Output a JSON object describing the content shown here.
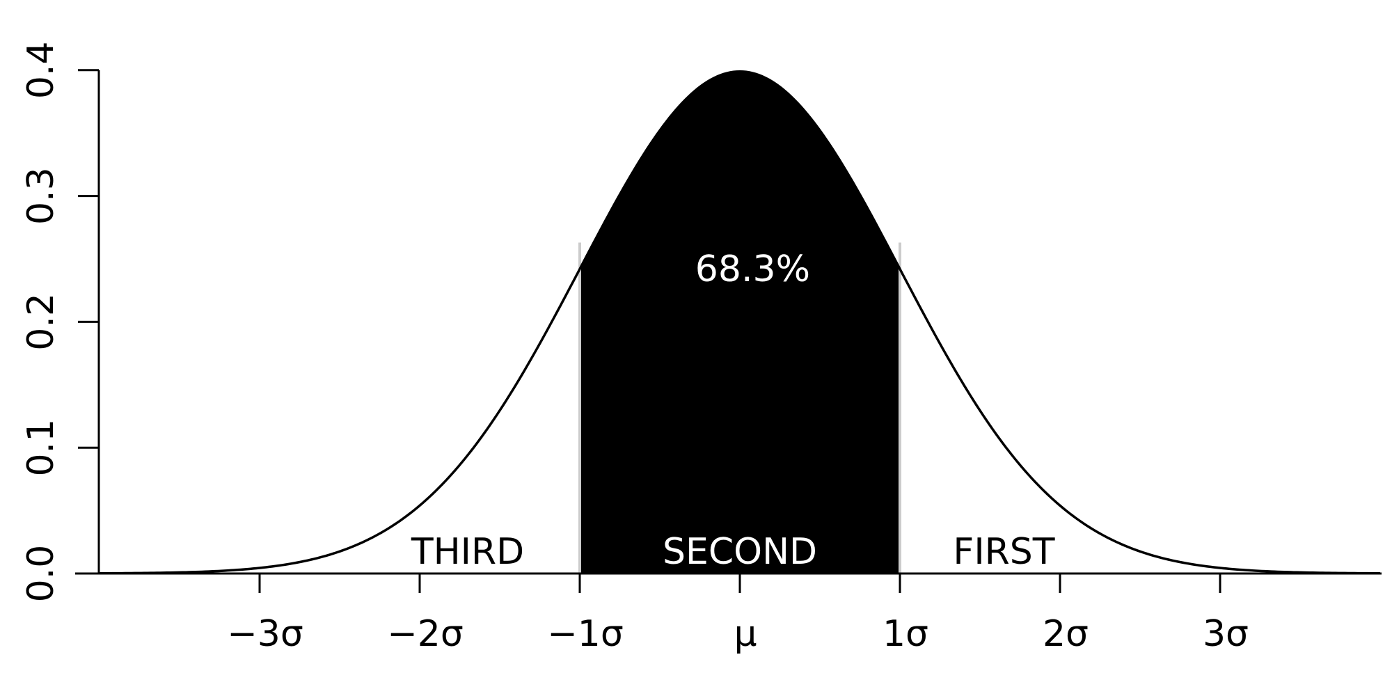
{
  "chart_data": {
    "type": "area",
    "title": "",
    "xlabel": "",
    "ylabel": "",
    "xlim": [
      -4.5,
      4.0
    ],
    "ylim": [
      0,
      0.4
    ],
    "grid": false,
    "x_ticks": [
      {
        "value": -3,
        "label": "−3σ"
      },
      {
        "value": -2,
        "label": "−2σ"
      },
      {
        "value": -1,
        "label": "−1σ"
      },
      {
        "value": 0,
        "label": "μ"
      },
      {
        "value": 1,
        "label": "1σ"
      },
      {
        "value": 2,
        "label": "2σ"
      },
      {
        "value": 3,
        "label": "3σ"
      }
    ],
    "y_ticks": [
      {
        "value": 0.0,
        "label": "0.0"
      },
      {
        "value": 0.1,
        "label": "0.1"
      },
      {
        "value": 0.2,
        "label": "0.2"
      },
      {
        "value": 0.3,
        "label": "0.3"
      },
      {
        "value": 0.4,
        "label": "0.4"
      }
    ],
    "series": [
      {
        "curve": "normal_pdf",
        "mean": 0,
        "sd": 1,
        "x_range": [
          -4.0,
          4.0
        ],
        "line_color": "#000000"
      }
    ],
    "shaded_region": {
      "x_from": -1,
      "x_to": 1,
      "fill_color": "#000000",
      "boundary_line_color": "#cccccc",
      "label": "68.3%",
      "label_color": "#ffffff"
    },
    "region_labels": [
      {
        "text": "THIRD",
        "x": -1.7,
        "color": "#000000"
      },
      {
        "text": "SECOND",
        "x": 0.0,
        "color": "#ffffff"
      },
      {
        "text": "FIRST",
        "x": 1.65,
        "color": "#000000"
      }
    ]
  }
}
